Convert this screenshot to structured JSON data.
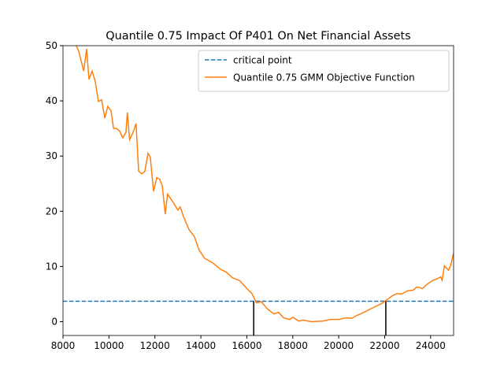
{
  "chart_data": {
    "type": "line",
    "title": "Quantile 0.75 Impact Of P401 On Net Financial Assets",
    "xlim": [
      8000,
      25000
    ],
    "xticks": [
      8000,
      10000,
      12000,
      14000,
      16000,
      18000,
      20000,
      22000,
      24000
    ],
    "ylim": [
      -2.5,
      50
    ],
    "yticks": [
      0,
      10,
      20,
      30,
      40,
      50
    ],
    "legend": "upper right",
    "series": [
      {
        "name": "critical point",
        "color": "#1f77b4",
        "style": "dashed",
        "value": 3.7
      },
      {
        "name": "Quantile 0.75 GMM Objective Function",
        "color": "#ff7f0e",
        "x": [
          8500,
          8580,
          8690,
          8900,
          9030,
          9130,
          9270,
          9400,
          9540,
          9680,
          9820,
          9950,
          10090,
          10200,
          10330,
          10470,
          10600,
          10740,
          10800,
          10900,
          11050,
          11180,
          11290,
          11420,
          11560,
          11700,
          11800,
          11940,
          12080,
          12210,
          12320,
          12450,
          12550,
          12800,
          13000,
          13100,
          13240,
          13480,
          13720,
          13920,
          14160,
          14500,
          14850,
          15100,
          15360,
          15700,
          16000,
          16220,
          16420,
          16630,
          16900,
          17180,
          17380,
          17600,
          17860,
          18000,
          18270,
          18450,
          18800,
          19300,
          19650,
          20000,
          20330,
          20570,
          20770,
          20950,
          21190,
          21530,
          21880,
          22200,
          22380,
          22550,
          22730,
          23000,
          23240,
          23400,
          23650,
          23820,
          24100,
          24300,
          24440,
          24500,
          24600,
          24780,
          24880,
          25000
        ],
        "values": [
          52,
          50,
          48.9,
          45.4,
          49.4,
          43.9,
          45.4,
          43.6,
          39.9,
          40.2,
          36.9,
          39.0,
          38.2,
          35.0,
          35.0,
          34.5,
          33.3,
          34.3,
          37.9,
          33.0,
          34.3,
          35.9,
          27.3,
          26.8,
          27.2,
          30.5,
          29.8,
          23.6,
          26.1,
          25.8,
          24.6,
          19.5,
          23.1,
          21.6,
          20.2,
          20.8,
          19.1,
          16.7,
          15.4,
          13.0,
          11.5,
          10.7,
          9.5,
          9.0,
          8.0,
          7.4,
          6.0,
          5.1,
          3.4,
          3.6,
          2.3,
          1.4,
          1.7,
          0.7,
          0.4,
          0.8,
          0.1,
          0.3,
          0,
          0.1,
          0.4,
          0.4,
          0.7,
          0.6,
          1.1,
          1.4,
          1.9,
          2.6,
          3.3,
          4.3,
          4.8,
          5.1,
          5.0,
          5.6,
          5.7,
          6.3,
          6.0,
          6.7,
          7.5,
          7.8,
          8.1,
          7.5,
          10.1,
          9.3,
          10.3,
          12.4
        ]
      }
    ],
    "vlines": [
      16300,
      22050
    ]
  }
}
